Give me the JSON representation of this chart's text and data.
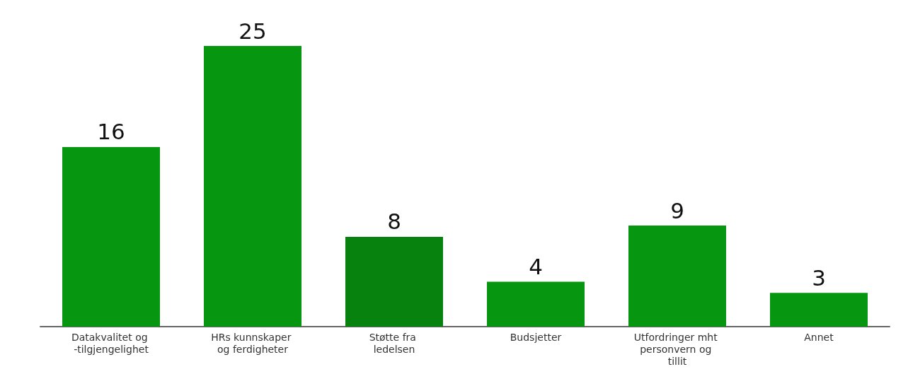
{
  "chart_data": {
    "type": "bar",
    "categories": [
      "Datakvalitet og -tilgjengelighet",
      "HRs kunnskaper og ferdigheter",
      "Støtte fra ledelsen",
      "Budsjetter",
      "Utfordringer mht personvern og tillit",
      "Annet"
    ],
    "values": [
      16,
      25,
      8,
      4,
      9,
      3
    ],
    "colors": [
      "#07960f",
      "#07960f",
      "#07820f",
      "#07960f",
      "#07960f",
      "#07960f"
    ],
    "data_labels": true
  }
}
